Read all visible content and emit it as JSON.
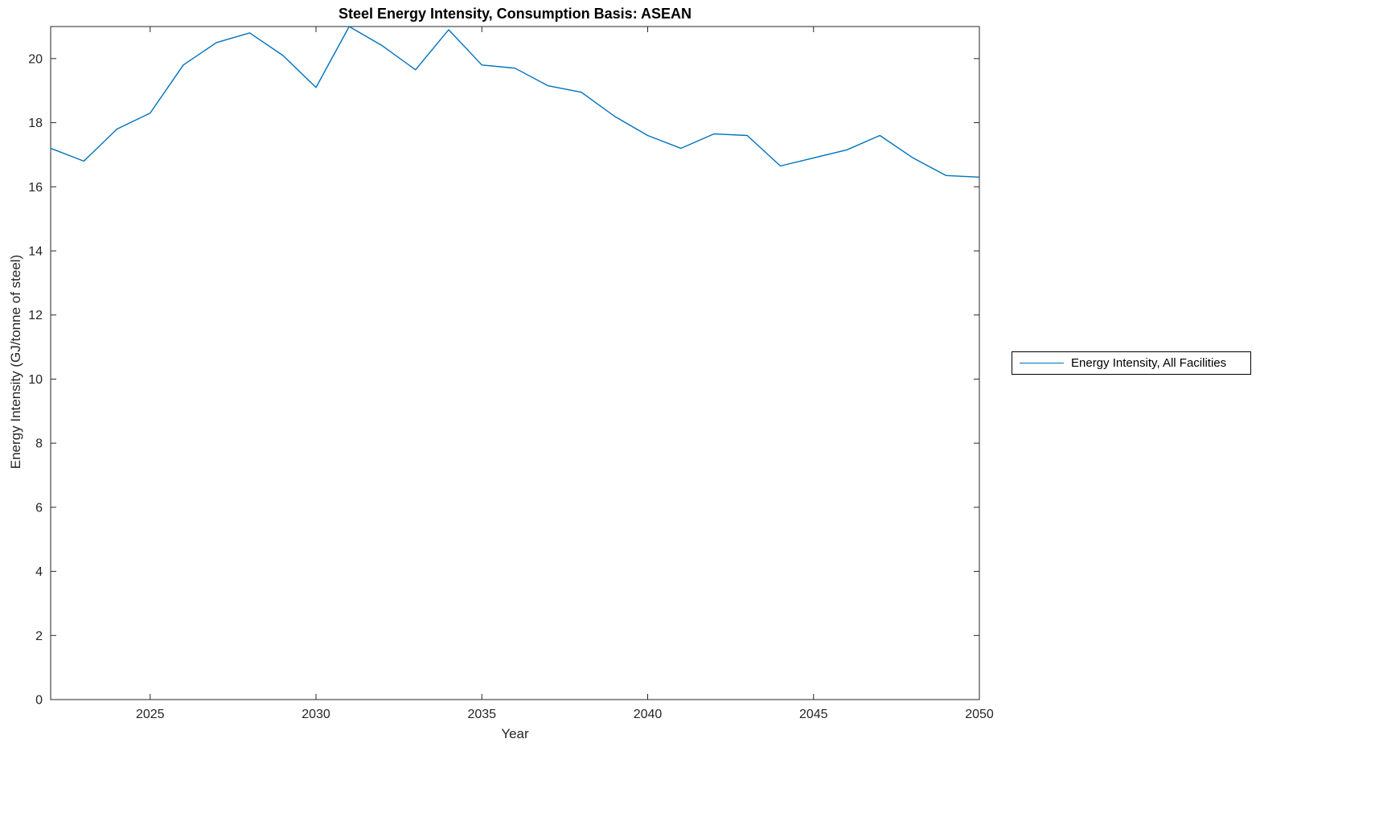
{
  "chart_data": {
    "type": "line",
    "title": "Steel Energy Intensity, Consumption Basis: ASEAN",
    "xlabel": "Year",
    "ylabel": "Energy Intensity (GJ/tonne of steel)",
    "xlim": [
      2022,
      2050
    ],
    "ylim": [
      0,
      21
    ],
    "xticks": [
      2025,
      2030,
      2035,
      2040,
      2045,
      2050
    ],
    "yticks": [
      0,
      2,
      4,
      6,
      8,
      10,
      12,
      14,
      16,
      18,
      20
    ],
    "grid": false,
    "legend_position": "right-outside",
    "series": [
      {
        "name": "Energy Intensity, All Facilities",
        "color": "#0072BD",
        "x": [
          2022,
          2023,
          2024,
          2025,
          2026,
          2027,
          2028,
          2029,
          2030,
          2031,
          2032,
          2033,
          2034,
          2035,
          2036,
          2037,
          2038,
          2039,
          2040,
          2041,
          2042,
          2043,
          2044,
          2045,
          2046,
          2047,
          2048,
          2049,
          2050
        ],
        "values": [
          17.2,
          16.8,
          17.8,
          18.3,
          19.8,
          20.5,
          20.8,
          20.1,
          19.1,
          21.0,
          20.4,
          19.65,
          20.9,
          19.8,
          19.7,
          19.15,
          18.95,
          18.2,
          17.6,
          17.2,
          17.65,
          17.6,
          16.65,
          16.9,
          17.15,
          17.6,
          16.9,
          16.35,
          16.3
        ]
      }
    ]
  },
  "colors": {
    "axis": "#262626",
    "background": "#ffffff"
  }
}
